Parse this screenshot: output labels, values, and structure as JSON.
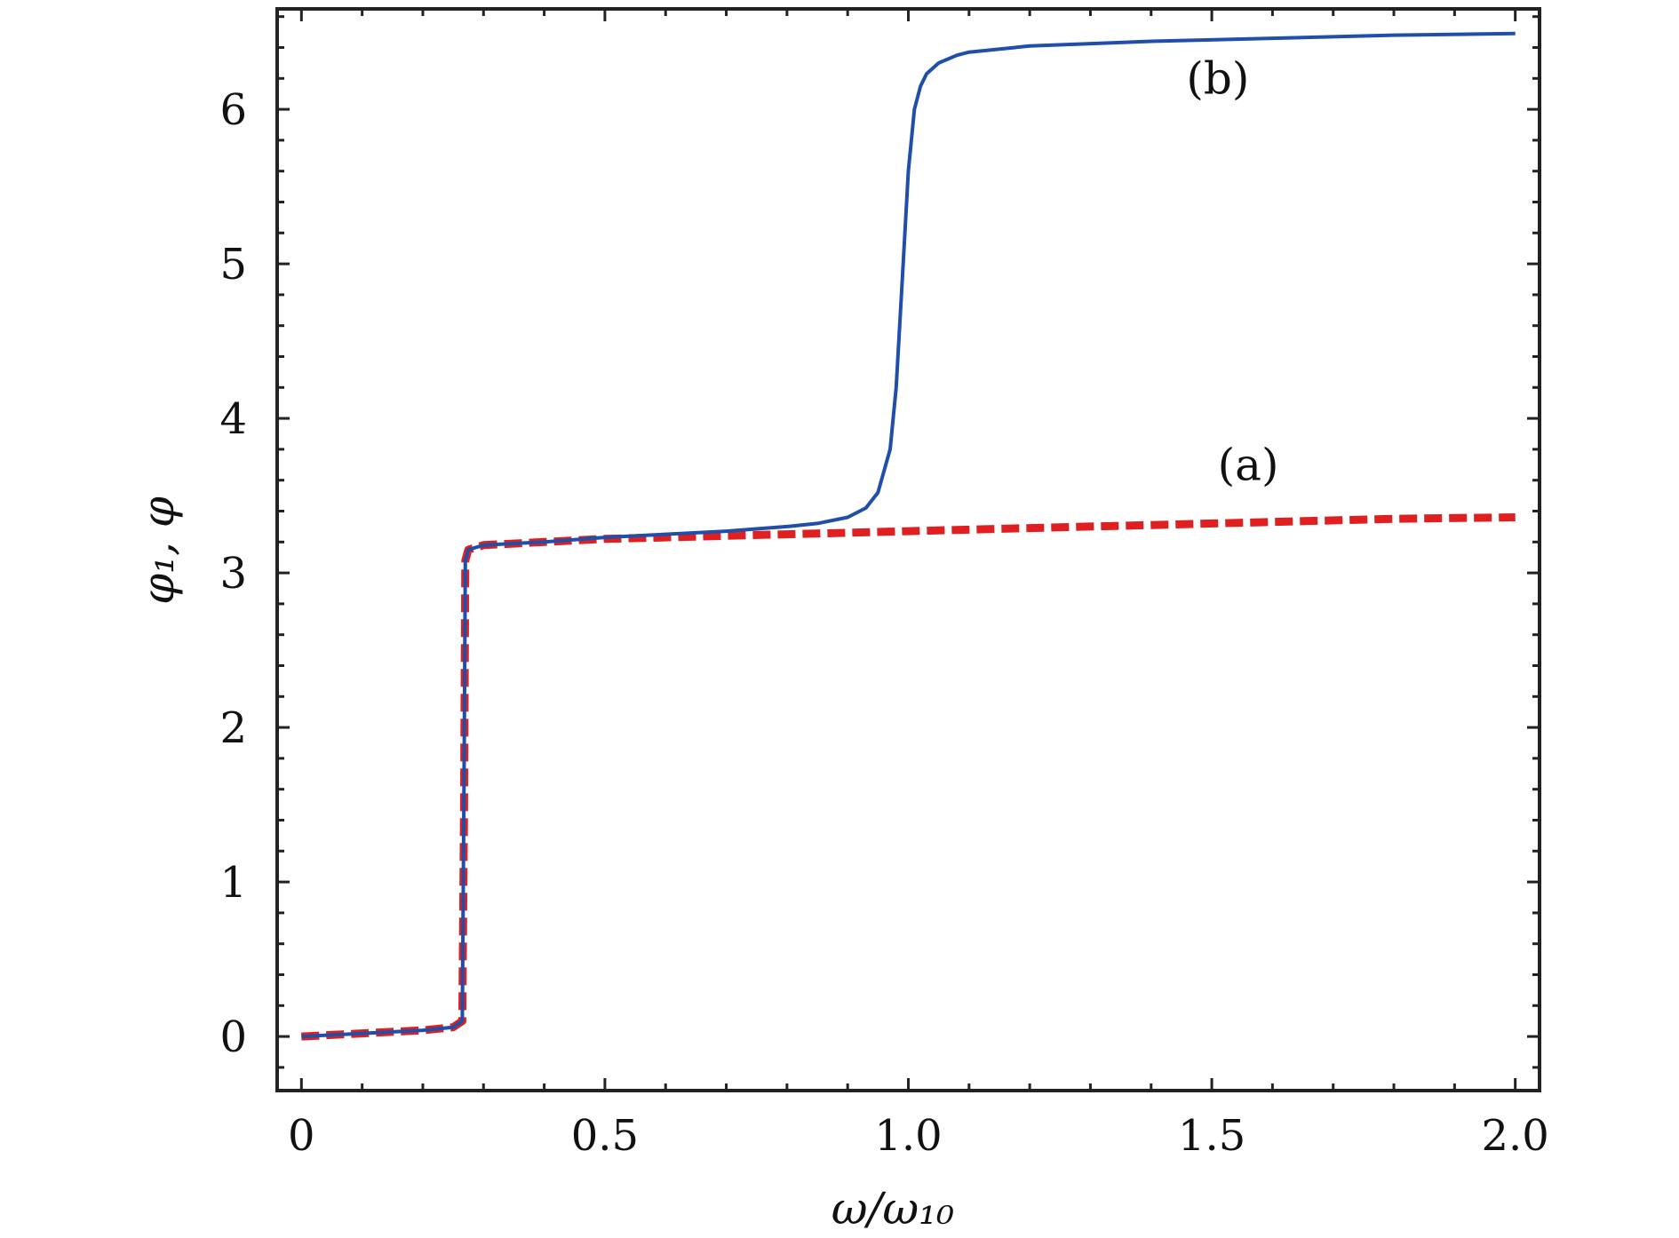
{
  "chart_data": {
    "type": "line",
    "title": "",
    "xlabel": "ω/ω₁₀",
    "ylabel": "φ₁, φ",
    "xlim": [
      -0.04,
      2.04
    ],
    "ylim": [
      -0.35,
      6.65
    ],
    "x_ticks": [
      0,
      0.5,
      1.0,
      1.5,
      2.0
    ],
    "x_tick_labels": [
      "0",
      "0.5",
      "1.0",
      "1.5",
      "2.0"
    ],
    "y_ticks": [
      0,
      1,
      2,
      3,
      4,
      5,
      6
    ],
    "y_tick_labels": [
      "0",
      "1",
      "2",
      "3",
      "4",
      "5",
      "6"
    ],
    "grid": false,
    "annotations": [
      {
        "text": "(a)",
        "x": 1.56,
        "y": 3.6
      },
      {
        "text": "(b)",
        "x": 1.51,
        "y": 6.1
      }
    ],
    "series": [
      {
        "name": "(a)",
        "style": "dashed",
        "color": "#e02020",
        "x": [
          0,
          0.1,
          0.2,
          0.25,
          0.265,
          0.268,
          0.27,
          0.275,
          0.3,
          0.4,
          0.5,
          0.6,
          0.7,
          0.8,
          0.9,
          1.0,
          1.2,
          1.4,
          1.6,
          1.8,
          2.0
        ],
        "y": [
          0,
          0.02,
          0.04,
          0.06,
          0.1,
          1.5,
          3.08,
          3.15,
          3.18,
          3.2,
          3.22,
          3.23,
          3.24,
          3.25,
          3.26,
          3.27,
          3.29,
          3.31,
          3.33,
          3.35,
          3.36
        ]
      },
      {
        "name": "(b)",
        "style": "solid",
        "color": "#1f4fa8",
        "x": [
          0,
          0.1,
          0.2,
          0.25,
          0.265,
          0.268,
          0.27,
          0.275,
          0.3,
          0.4,
          0.5,
          0.6,
          0.7,
          0.8,
          0.85,
          0.9,
          0.93,
          0.95,
          0.97,
          0.98,
          0.99,
          1.0,
          1.01,
          1.02,
          1.03,
          1.05,
          1.08,
          1.1,
          1.2,
          1.4,
          1.6,
          1.8,
          2.0
        ],
        "y": [
          0,
          0.02,
          0.04,
          0.06,
          0.1,
          1.7,
          3.08,
          3.15,
          3.18,
          3.2,
          3.23,
          3.25,
          3.27,
          3.3,
          3.32,
          3.36,
          3.42,
          3.52,
          3.8,
          4.2,
          4.9,
          5.6,
          6.0,
          6.15,
          6.23,
          6.3,
          6.35,
          6.37,
          6.41,
          6.44,
          6.46,
          6.48,
          6.49
        ]
      }
    ]
  }
}
